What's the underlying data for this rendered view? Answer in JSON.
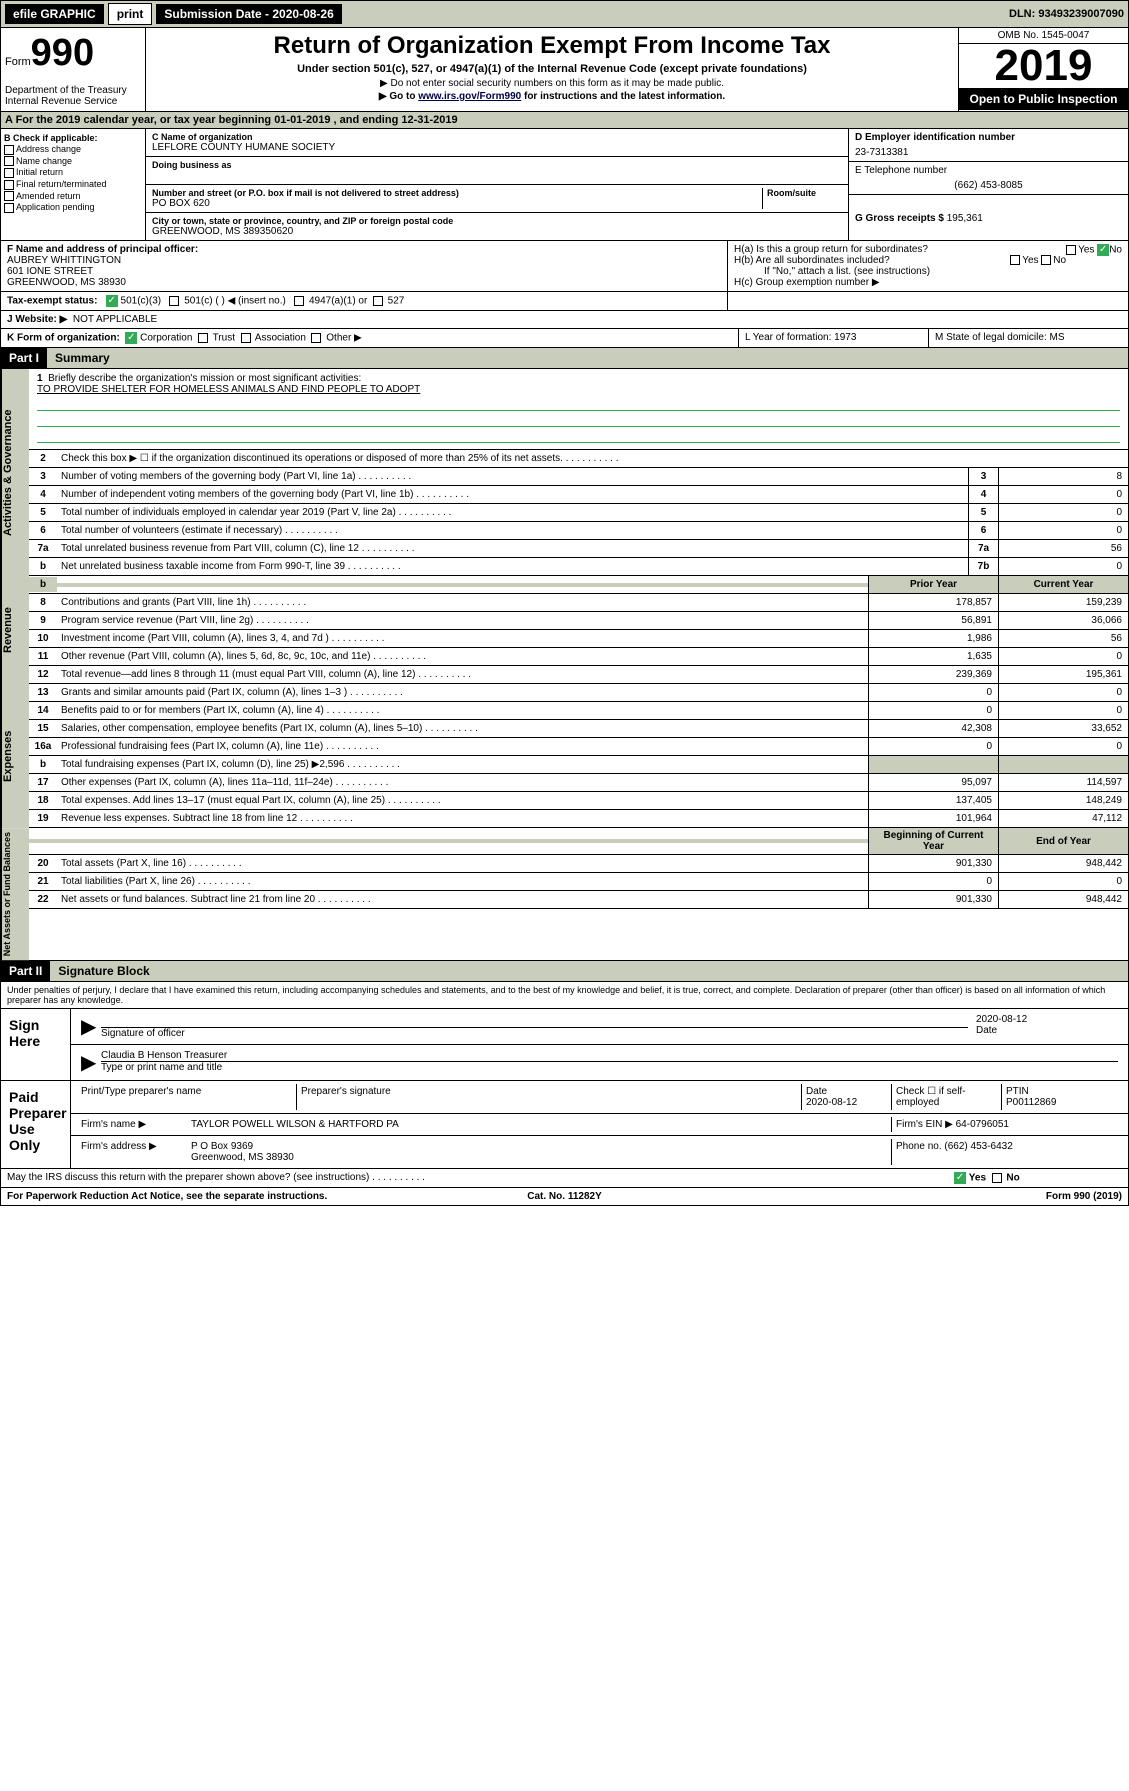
{
  "topbar": {
    "efile": "efile GRAPHIC",
    "print": "print",
    "subdate_lbl": "Submission Date - 2020-08-26",
    "dln": "DLN: 93493239007090"
  },
  "header": {
    "form_prefix": "Form",
    "form_num": "990",
    "dept": "Department of the Treasury\nInternal Revenue Service",
    "title": "Return of Organization Exempt From Income Tax",
    "sub": "Under section 501(c), 527, or 4947(a)(1) of the Internal Revenue Code (except private foundations)",
    "instr1": "▶ Do not enter social security numbers on this form as it may be made public.",
    "instr2": "▶ Go to www.irs.gov/Form990 for instructions and the latest information.",
    "omb": "OMB No. 1545-0047",
    "year": "2019",
    "open": "Open to Public Inspection"
  },
  "row_a": "A For the 2019 calendar year, or tax year beginning 01-01-2019   , and ending 12-31-2019",
  "box_b": {
    "lbl": "B Check if applicable:",
    "opts": [
      "Address change",
      "Name change",
      "Initial return",
      "Final return/terminated",
      "Amended return",
      "Application pending"
    ]
  },
  "box_c": {
    "name_lbl": "C Name of organization",
    "name": "LEFLORE COUNTY HUMANE SOCIETY",
    "dba_lbl": "Doing business as",
    "addr_lbl": "Number and street (or P.O. box if mail is not delivered to street address)",
    "room_lbl": "Room/suite",
    "addr": "PO BOX 620",
    "city_lbl": "City or town, state or province, country, and ZIP or foreign postal code",
    "city": "GREENWOOD, MS  389350620"
  },
  "box_d": {
    "lbl": "D Employer identification number",
    "val": "23-7313381"
  },
  "box_e": {
    "lbl": "E Telephone number",
    "val": "(662) 453-8085"
  },
  "box_g": {
    "lbl": "G Gross receipts $",
    "val": "195,361"
  },
  "box_f": {
    "lbl": "F  Name and address of principal officer:",
    "name": "AUBREY WHITTINGTON",
    "addr1": "601 IONE STREET",
    "addr2": "GREENWOOD, MS  38930"
  },
  "box_h": {
    "a": "H(a)  Is this a group return for subordinates?",
    "b": "H(b)  Are all subordinates included?",
    "note": "If \"No,\" attach a list. (see instructions)",
    "c": "H(c)  Group exemption number ▶"
  },
  "tax_status": {
    "lbl": "Tax-exempt status:",
    "o1": "501(c)(3)",
    "o2": "501(c) (  ) ◀ (insert no.)",
    "o3": "4947(a)(1) or",
    "o4": "527"
  },
  "row_j": {
    "lbl": "J   Website: ▶",
    "val": "NOT APPLICABLE"
  },
  "row_k": {
    "lbl": "K Form of organization:",
    "opts": [
      "Corporation",
      "Trust",
      "Association",
      "Other ▶"
    ],
    "l": "L Year of formation: 1973",
    "m": "M State of legal domicile: MS"
  },
  "part1": {
    "hdr": "Part I",
    "title": "Summary"
  },
  "mission": {
    "num": "1",
    "lbl": "Briefly describe the organization's mission or most significant activities:",
    "text": "TO PROVIDE SHELTER FOR HOMELESS ANIMALS AND FIND PEOPLE TO ADOPT"
  },
  "gov_lines": [
    {
      "n": "2",
      "d": "Check this box ▶ ☐  if the organization discontinued its operations or disposed of more than 25% of its net assets."
    },
    {
      "n": "3",
      "d": "Number of voting members of the governing body (Part VI, line 1a)",
      "b": "3",
      "v": "8"
    },
    {
      "n": "4",
      "d": "Number of independent voting members of the governing body (Part VI, line 1b)",
      "b": "4",
      "v": "0"
    },
    {
      "n": "5",
      "d": "Total number of individuals employed in calendar year 2019 (Part V, line 2a)",
      "b": "5",
      "v": "0"
    },
    {
      "n": "6",
      "d": "Total number of volunteers (estimate if necessary)",
      "b": "6",
      "v": "0"
    },
    {
      "n": "7a",
      "d": "Total unrelated business revenue from Part VIII, column (C), line 12",
      "b": "7a",
      "v": "56"
    },
    {
      "n": "b",
      "d": "Net unrelated business taxable income from Form 990-T, line 39",
      "b": "7b",
      "v": "0"
    }
  ],
  "rev_hdr": {
    "py": "Prior Year",
    "cy": "Current Year"
  },
  "rev_lines": [
    {
      "n": "8",
      "d": "Contributions and grants (Part VIII, line 1h)",
      "py": "178,857",
      "cy": "159,239"
    },
    {
      "n": "9",
      "d": "Program service revenue (Part VIII, line 2g)",
      "py": "56,891",
      "cy": "36,066"
    },
    {
      "n": "10",
      "d": "Investment income (Part VIII, column (A), lines 3, 4, and 7d )",
      "py": "1,986",
      "cy": "56"
    },
    {
      "n": "11",
      "d": "Other revenue (Part VIII, column (A), lines 5, 6d, 8c, 9c, 10c, and 11e)",
      "py": "1,635",
      "cy": "0"
    },
    {
      "n": "12",
      "d": "Total revenue—add lines 8 through 11 (must equal Part VIII, column (A), line 12)",
      "py": "239,369",
      "cy": "195,361"
    }
  ],
  "exp_lines": [
    {
      "n": "13",
      "d": "Grants and similar amounts paid (Part IX, column (A), lines 1–3 )",
      "py": "0",
      "cy": "0"
    },
    {
      "n": "14",
      "d": "Benefits paid to or for members (Part IX, column (A), line 4)",
      "py": "0",
      "cy": "0"
    },
    {
      "n": "15",
      "d": "Salaries, other compensation, employee benefits (Part IX, column (A), lines 5–10)",
      "py": "42,308",
      "cy": "33,652"
    },
    {
      "n": "16a",
      "d": "Professional fundraising fees (Part IX, column (A), line 11e)",
      "py": "0",
      "cy": "0"
    },
    {
      "n": "b",
      "d": "Total fundraising expenses (Part IX, column (D), line 25) ▶2,596",
      "shade": true
    },
    {
      "n": "17",
      "d": "Other expenses (Part IX, column (A), lines 11a–11d, 11f–24e)",
      "py": "95,097",
      "cy": "114,597"
    },
    {
      "n": "18",
      "d": "Total expenses. Add lines 13–17 (must equal Part IX, column (A), line 25)",
      "py": "137,405",
      "cy": "148,249"
    },
    {
      "n": "19",
      "d": "Revenue less expenses. Subtract line 18 from line 12",
      "py": "101,964",
      "cy": "47,112"
    }
  ],
  "net_hdr": {
    "py": "Beginning of Current Year",
    "cy": "End of Year"
  },
  "net_lines": [
    {
      "n": "20",
      "d": "Total assets (Part X, line 16)",
      "py": "901,330",
      "cy": "948,442"
    },
    {
      "n": "21",
      "d": "Total liabilities (Part X, line 26)",
      "py": "0",
      "cy": "0"
    },
    {
      "n": "22",
      "d": "Net assets or fund balances. Subtract line 21 from line 20",
      "py": "901,330",
      "cy": "948,442"
    }
  ],
  "part2": {
    "hdr": "Part II",
    "title": "Signature Block"
  },
  "penalty": "Under penalties of perjury, I declare that I have examined this return, including accompanying schedules and statements, and to the best of my knowledge and belief, it is true, correct, and complete. Declaration of preparer (other than officer) is based on all information of which preparer has any knowledge.",
  "sign": {
    "lbl": "Sign Here",
    "sig_lbl": "Signature of officer",
    "date": "2020-08-12",
    "date_lbl": "Date",
    "name": "Claudia B Henson  Treasurer",
    "name_lbl": "Type or print name and title"
  },
  "paid": {
    "lbl": "Paid Preparer Use Only",
    "h1": "Print/Type preparer's name",
    "h2": "Preparer's signature",
    "h3": "Date",
    "date": "2020-08-12",
    "h4": "Check ☐ if self-employed",
    "h5": "PTIN",
    "ptin": "P00112869",
    "firm_lbl": "Firm's name    ▶",
    "firm": "TAYLOR POWELL WILSON & HARTFORD PA",
    "ein_lbl": "Firm's EIN ▶",
    "ein": "64-0796051",
    "addr_lbl": "Firm's address ▶",
    "addr": "P O Box 9369",
    "addr2": "Greenwood, MS  38930",
    "phone_lbl": "Phone no.",
    "phone": "(662) 453-6432"
  },
  "discuss": "May the IRS discuss this return with the preparer shown above? (see instructions)",
  "footer": {
    "l": "For Paperwork Reduction Act Notice, see the separate instructions.",
    "c": "Cat. No. 11282Y",
    "r": "Form 990 (2019)"
  },
  "yesno": {
    "yes": "Yes",
    "no": "No"
  }
}
